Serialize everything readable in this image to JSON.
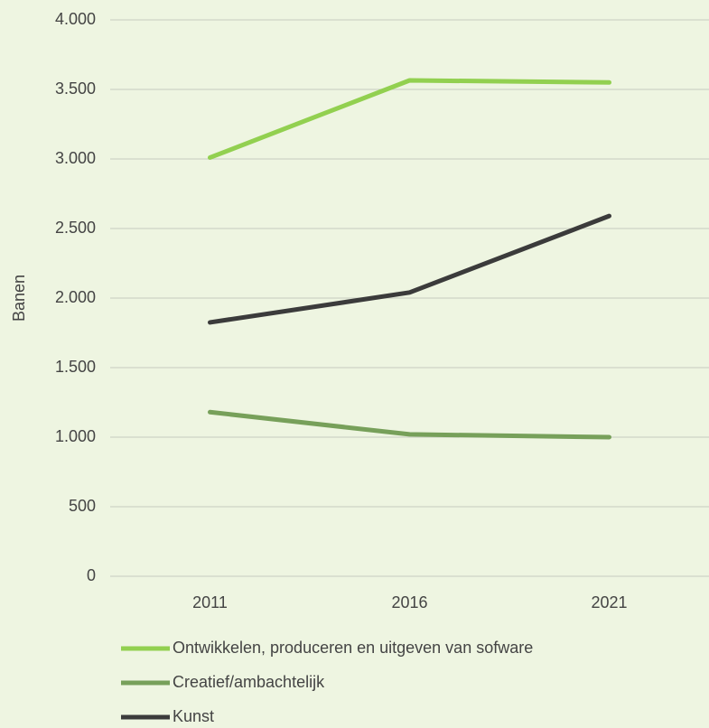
{
  "chart_data": {
    "type": "line",
    "y_label": "Banen",
    "categories": [
      "2011",
      "2016",
      "2021"
    ],
    "series": [
      {
        "name": "Ontwikkelen, produceren en uitgeven van sofware",
        "color": "#92d050",
        "values": [
          3010,
          3565,
          3550
        ]
      },
      {
        "name": "Creatief/ambachtelijk",
        "color": "#77a05a",
        "values": [
          1180,
          1020,
          1000
        ]
      },
      {
        "name": "Kunst",
        "color": "#3b3b3b",
        "values": [
          1825,
          2040,
          2590
        ]
      }
    ],
    "ylim": [
      0,
      4000
    ],
    "yticks": [
      0,
      500,
      {
        "value": 1000,
        "label": "1.000"
      },
      {
        "value": 1500,
        "label": "1.500"
      },
      {
        "value": 2000,
        "label": "2.000"
      },
      {
        "value": 2500,
        "label": "2.500"
      },
      {
        "value": 3000,
        "label": "3.000"
      },
      {
        "value": 3500,
        "label": "3.500"
      },
      {
        "value": 4000,
        "label": "4.000"
      }
    ],
    "grid": true,
    "legend": "bottom"
  }
}
